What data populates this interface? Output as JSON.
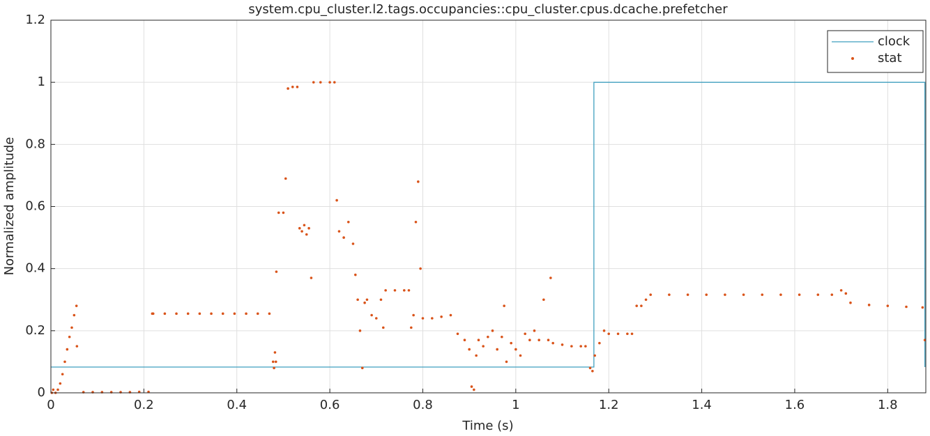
{
  "chart_data": {
    "type": "line",
    "title": "system.cpu_cluster.l2.tags.occupancies::cpu_cluster.cpus.dcache.prefetcher",
    "x_label": "Time (s)",
    "y_label": "Normalized amplitude",
    "xlim": [
      0,
      1.882
    ],
    "ylim": [
      0,
      1.2
    ],
    "xticks": [
      0,
      0.2,
      0.4,
      0.6,
      0.8,
      1,
      1.2,
      1.4,
      1.6,
      1.8
    ],
    "yticks": [
      0,
      0.2,
      0.4,
      0.6,
      0.8,
      1,
      1.2
    ],
    "grid": true,
    "legend": "top-right",
    "series": [
      {
        "name": "clock",
        "color": "#3f9fbf",
        "style": "line",
        "x": [
          0,
          1.168,
          1.168,
          1.88,
          1.88
        ],
        "values": [
          0.083,
          0.083,
          1,
          1,
          0.083
        ]
      },
      {
        "name": "stat",
        "color": "#d95319",
        "style": "markers",
        "x": [
          0.002,
          0.005,
          0.01,
          0.015,
          0.02,
          0.025,
          0.03,
          0.035,
          0.04,
          0.045,
          0.05,
          0.055,
          0.056,
          0.07,
          0.09,
          0.11,
          0.13,
          0.15,
          0.17,
          0.19,
          0.21,
          0.218,
          0.22,
          0.245,
          0.27,
          0.295,
          0.32,
          0.345,
          0.37,
          0.395,
          0.42,
          0.445,
          0.47,
          0.478,
          0.48,
          0.482,
          0.484,
          0.485,
          0.49,
          0.5,
          0.505,
          0.51,
          0.52,
          0.53,
          0.535,
          0.54,
          0.545,
          0.55,
          0.555,
          0.56,
          0.565,
          0.58,
          0.6,
          0.61,
          0.615,
          0.62,
          0.63,
          0.64,
          0.65,
          0.655,
          0.66,
          0.665,
          0.67,
          0.675,
          0.68,
          0.69,
          0.7,
          0.71,
          0.715,
          0.72,
          0.74,
          0.76,
          0.77,
          0.775,
          0.78,
          0.785,
          0.79,
          0.795,
          0.8,
          0.82,
          0.84,
          0.86,
          0.875,
          0.89,
          0.9,
          0.905,
          0.91,
          0.915,
          0.92,
          0.93,
          0.94,
          0.95,
          0.96,
          0.97,
          0.975,
          0.98,
          0.99,
          1.0,
          1.01,
          1.02,
          1.03,
          1.04,
          1.05,
          1.06,
          1.07,
          1.075,
          1.08,
          1.1,
          1.12,
          1.14,
          1.15,
          1.16,
          1.165,
          1.17,
          1.18,
          1.19,
          1.2,
          1.22,
          1.24,
          1.25,
          1.26,
          1.27,
          1.28,
          1.29,
          1.33,
          1.37,
          1.41,
          1.45,
          1.49,
          1.53,
          1.57,
          1.61,
          1.65,
          1.68,
          1.7,
          1.71,
          1.72,
          1.76,
          1.8,
          1.84,
          1.875,
          1.88
        ],
        "values": [
          0,
          0.01,
          0,
          0.01,
          0.03,
          0.06,
          0.1,
          0.14,
          0.18,
          0.21,
          0.25,
          0.28,
          0.15,
          0.002,
          0.002,
          0.002,
          0.002,
          0.002,
          0.002,
          0.003,
          0.003,
          0.255,
          0.255,
          0.255,
          0.255,
          0.255,
          0.255,
          0.255,
          0.255,
          0.255,
          0.255,
          0.255,
          0.255,
          0.1,
          0.08,
          0.13,
          0.1,
          0.39,
          0.58,
          0.58,
          0.69,
          0.98,
          0.985,
          0.985,
          0.53,
          0.52,
          0.54,
          0.51,
          0.53,
          0.37,
          1,
          1,
          1,
          1,
          0.62,
          0.52,
          0.5,
          0.55,
          0.48,
          0.38,
          0.3,
          0.2,
          0.08,
          0.29,
          0.3,
          0.25,
          0.24,
          0.3,
          0.21,
          0.33,
          0.33,
          0.33,
          0.33,
          0.21,
          0.25,
          0.55,
          0.68,
          0.4,
          0.24,
          0.24,
          0.245,
          0.25,
          0.19,
          0.17,
          0.14,
          0.02,
          0.01,
          0.12,
          0.17,
          0.15,
          0.18,
          0.2,
          0.14,
          0.18,
          0.28,
          0.1,
          0.16,
          0.14,
          0.12,
          0.19,
          0.17,
          0.2,
          0.17,
          0.3,
          0.17,
          0.37,
          0.16,
          0.155,
          0.15,
          0.15,
          0.15,
          0.08,
          0.07,
          0.12,
          0.16,
          0.2,
          0.19,
          0.19,
          0.19,
          0.19,
          0.28,
          0.28,
          0.3,
          0.316,
          0.316,
          0.316,
          0.316,
          0.316,
          0.316,
          0.316,
          0.316,
          0.316,
          0.316,
          0.316,
          0.33,
          0.32,
          0.29,
          0.283,
          0.28,
          0.277,
          0.275,
          0.17
        ]
      }
    ]
  }
}
